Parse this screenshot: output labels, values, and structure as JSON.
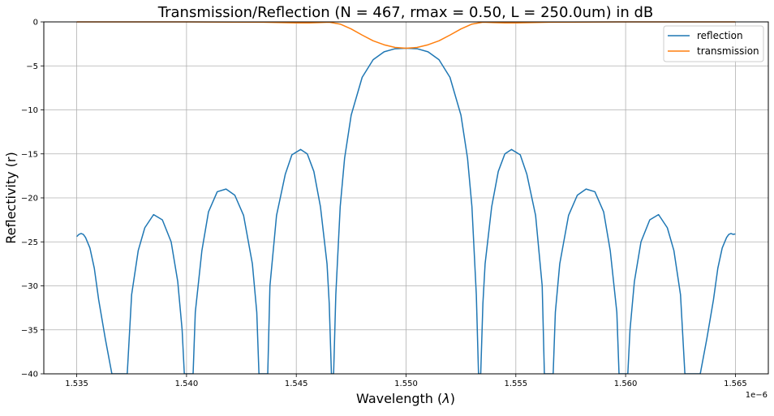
{
  "chart_data": {
    "type": "line",
    "title": "Transmission/Reflection (N = 467, rmax = 0.50, L = 250.0um) in dB",
    "xlabel": "Wavelength ($\\lambda$)",
    "ylabel": "Reflectivity (r)",
    "x_offset_label": "1e−6",
    "xlim": [
      1.5335,
      1.5665
    ],
    "ylim": [
      -40,
      0
    ],
    "x_ticks": [
      1.535,
      1.54,
      1.545,
      1.55,
      1.555,
      1.56,
      1.565
    ],
    "x_tick_labels": [
      "1.535",
      "1.540",
      "1.545",
      "1.550",
      "1.555",
      "1.560",
      "1.565"
    ],
    "y_ticks": [
      0,
      -5,
      -10,
      -15,
      -20,
      -25,
      -30,
      -35,
      -40
    ],
    "y_tick_labels": [
      "0",
      "−5",
      "−10",
      "−15",
      "−20",
      "−25",
      "−30",
      "−35",
      "−40"
    ],
    "grid": true,
    "legend_position": "top-right",
    "series": [
      {
        "name": "reflection",
        "color": "#1f77b4",
        "points": [
          [
            1.535,
            -24.4
          ],
          [
            1.5351,
            -24.15
          ],
          [
            1.5352,
            -24.05
          ],
          [
            1.5353,
            -24.15
          ],
          [
            1.5354,
            -24.5
          ],
          [
            1.5356,
            -25.7
          ],
          [
            1.5358,
            -28.0
          ],
          [
            1.536,
            -31.6
          ],
          [
            1.5363,
            -36.0
          ],
          [
            1.5366,
            -40.0
          ],
          [
            1.5373,
            -40.0
          ],
          [
            1.5375,
            -31.0
          ],
          [
            1.5378,
            -26.0
          ],
          [
            1.5381,
            -23.4
          ],
          [
            1.5385,
            -21.9
          ],
          [
            1.5389,
            -22.5
          ],
          [
            1.5393,
            -25.0
          ],
          [
            1.5396,
            -29.5
          ],
          [
            1.5398,
            -35.0
          ],
          [
            1.5399,
            -40.0
          ],
          [
            1.5403,
            -40.0
          ],
          [
            1.5404,
            -33.0
          ],
          [
            1.5407,
            -26.0
          ],
          [
            1.541,
            -21.6
          ],
          [
            1.5414,
            -19.3
          ],
          [
            1.5418,
            -19.0
          ],
          [
            1.5422,
            -19.7
          ],
          [
            1.5426,
            -22.0
          ],
          [
            1.543,
            -27.5
          ],
          [
            1.5432,
            -33.0
          ],
          [
            1.5433,
            -40.0
          ],
          [
            1.5437,
            -40.0
          ],
          [
            1.5438,
            -30.0
          ],
          [
            1.5441,
            -22.0
          ],
          [
            1.5445,
            -17.3
          ],
          [
            1.5448,
            -15.1
          ],
          [
            1.5452,
            -14.5
          ],
          [
            1.5455,
            -15.0
          ],
          [
            1.5458,
            -17.0
          ],
          [
            1.5461,
            -21.0
          ],
          [
            1.5464,
            -27.5
          ],
          [
            1.5465,
            -32.0
          ],
          [
            1.5466,
            -40.0
          ],
          [
            1.5467,
            -40.0
          ],
          [
            1.5468,
            -31.0
          ],
          [
            1.547,
            -21.0
          ],
          [
            1.5472,
            -15.5
          ],
          [
            1.5475,
            -10.6
          ],
          [
            1.548,
            -6.3
          ],
          [
            1.5485,
            -4.3
          ],
          [
            1.549,
            -3.4
          ],
          [
            1.5495,
            -3.05
          ],
          [
            1.55,
            -3.0
          ],
          [
            1.5505,
            -3.05
          ],
          [
            1.551,
            -3.4
          ],
          [
            1.5515,
            -4.3
          ],
          [
            1.552,
            -6.3
          ],
          [
            1.5525,
            -10.6
          ],
          [
            1.5528,
            -15.5
          ],
          [
            1.553,
            -21.0
          ],
          [
            1.5532,
            -31.0
          ],
          [
            1.5533,
            -40.0
          ],
          [
            1.5534,
            -40.0
          ],
          [
            1.5535,
            -32.0
          ],
          [
            1.5536,
            -27.5
          ],
          [
            1.5539,
            -21.0
          ],
          [
            1.5542,
            -17.0
          ],
          [
            1.5545,
            -15.0
          ],
          [
            1.5548,
            -14.5
          ],
          [
            1.5552,
            -15.1
          ],
          [
            1.5555,
            -17.3
          ],
          [
            1.5559,
            -22.0
          ],
          [
            1.5562,
            -30.0
          ],
          [
            1.5563,
            -40.0
          ],
          [
            1.5567,
            -40.0
          ],
          [
            1.5568,
            -33.0
          ],
          [
            1.557,
            -27.5
          ],
          [
            1.5574,
            -22.0
          ],
          [
            1.5578,
            -19.7
          ],
          [
            1.5582,
            -19.0
          ],
          [
            1.5586,
            -19.3
          ],
          [
            1.559,
            -21.6
          ],
          [
            1.5593,
            -26.0
          ],
          [
            1.5596,
            -33.0
          ],
          [
            1.5597,
            -40.0
          ],
          [
            1.5601,
            -40.0
          ],
          [
            1.5602,
            -35.0
          ],
          [
            1.5604,
            -29.5
          ],
          [
            1.5607,
            -25.0
          ],
          [
            1.5611,
            -22.5
          ],
          [
            1.5615,
            -21.9
          ],
          [
            1.5619,
            -23.4
          ],
          [
            1.5622,
            -26.0
          ],
          [
            1.5625,
            -31.0
          ],
          [
            1.5627,
            -40.0
          ],
          [
            1.5634,
            -40.0
          ],
          [
            1.5637,
            -36.0
          ],
          [
            1.564,
            -31.6
          ],
          [
            1.5642,
            -28.0
          ],
          [
            1.5644,
            -25.7
          ],
          [
            1.5646,
            -24.5
          ],
          [
            1.5647,
            -24.15
          ],
          [
            1.5648,
            -24.05
          ],
          [
            1.5649,
            -24.15
          ],
          [
            1.565,
            -24.1
          ]
        ]
      },
      {
        "name": "transmission",
        "color": "#ff7f0e",
        "points": [
          [
            1.535,
            0.0
          ],
          [
            1.54,
            0.0
          ],
          [
            1.5435,
            -0.03
          ],
          [
            1.545,
            -0.12
          ],
          [
            1.5455,
            -0.12
          ],
          [
            1.546,
            -0.08
          ],
          [
            1.5465,
            -0.03
          ],
          [
            1.547,
            -0.25
          ],
          [
            1.5475,
            -0.8
          ],
          [
            1.548,
            -1.5
          ],
          [
            1.5485,
            -2.15
          ],
          [
            1.549,
            -2.6
          ],
          [
            1.5495,
            -2.9
          ],
          [
            1.55,
            -3.0
          ],
          [
            1.5505,
            -2.9
          ],
          [
            1.551,
            -2.6
          ],
          [
            1.5515,
            -2.15
          ],
          [
            1.552,
            -1.5
          ],
          [
            1.5525,
            -0.8
          ],
          [
            1.553,
            -0.25
          ],
          [
            1.5535,
            -0.03
          ],
          [
            1.554,
            -0.08
          ],
          [
            1.5545,
            -0.12
          ],
          [
            1.555,
            -0.12
          ],
          [
            1.5565,
            -0.03
          ],
          [
            1.56,
            0.0
          ],
          [
            1.565,
            0.0
          ]
        ]
      }
    ]
  }
}
